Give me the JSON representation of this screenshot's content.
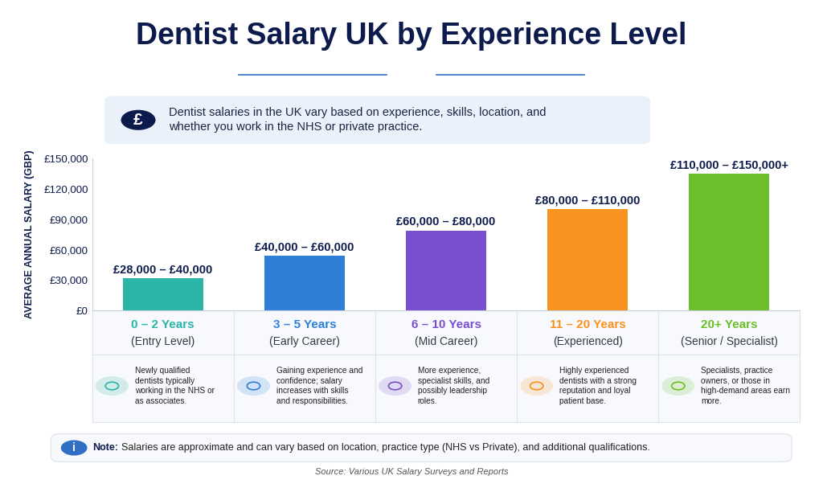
{
  "chart_data": {
    "type": "bar",
    "title": "Dentist Salary UK by Experience Level",
    "info_icon": "£",
    "info_text": "Dentist salaries in the UK vary based on experience, skills, location, and whether you work in the NHS or private practice.",
    "ylabel": "AVERAGE ANNUAL SALARY (GBP)",
    "categories": [
      "0 – 2 Years",
      "3 – 5 Years",
      "6 – 10 Years",
      "11 – 20 Years",
      "20+ Years"
    ],
    "stages": [
      "(Entry Level)",
      "(Early Career)",
      "(Mid Career)",
      "(Experienced)",
      "(Senior / Specialist)"
    ],
    "descriptions": [
      "Newly qualified dentists typically working in the NHS or as associates.",
      "Gaining experience and confidence; salary increases with skills and responsibilities.",
      "More experience, specialist skills, and possibly leadership roles.",
      "Highly experienced dentists with a strong reputation and loyal patient base.",
      "Specialists, practice owners, or those in high-demand areas earn more."
    ],
    "values": [
      32000,
      54000,
      79000,
      100000,
      135000
    ],
    "range_labels": [
      "£28,000 – £40,000",
      "£40,000 – £60,000",
      "£60,000 – £80,000",
      "£80,000 – £110,000",
      "£110,000 – £150,000+"
    ],
    "colors": [
      "#2bb5a8",
      "#2f7fd8",
      "#7a4fcf",
      "#f7931e",
      "#6bbf2a"
    ],
    "ylim": [
      0,
      150000
    ],
    "yticks": [
      {
        "value": 0,
        "label": "£0"
      },
      {
        "value": 30000,
        "label": "£30,000"
      },
      {
        "value": 60000,
        "label": "£60,000"
      },
      {
        "value": 90000,
        "label": "£90,000"
      },
      {
        "value": 120000,
        "label": "£120,000"
      },
      {
        "value": 150000,
        "label": "£150,000"
      }
    ],
    "grid": false,
    "note_icon": "i",
    "note_label": "Note:",
    "note": "Salaries are approximate and can vary based on location, practice type (NHS vs Private), and additional qualifications.",
    "source": "Source: Various UK Salary Surveys and Reports"
  }
}
